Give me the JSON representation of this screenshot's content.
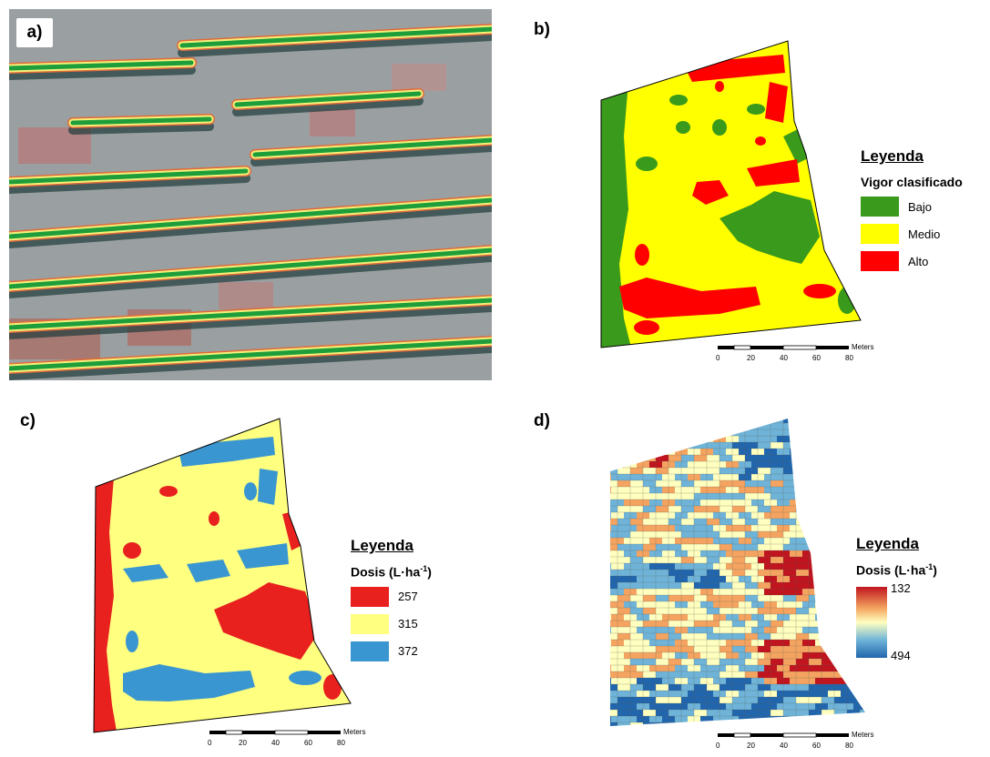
{
  "panels": {
    "a": "a)",
    "b": "b)",
    "c": "c)",
    "d": "d)"
  },
  "legend_b": {
    "title": "Leyenda",
    "subtitle": "Vigor clasificado",
    "items": [
      {
        "label": "Bajo",
        "color": "#3a9a1c"
      },
      {
        "label": "Medio",
        "color": "#ffff00"
      },
      {
        "label": "Alto",
        "color": "#ff0000"
      }
    ]
  },
  "legend_c": {
    "title": "Leyenda",
    "subtitle": "Dosis (L·ha",
    "superscript": "-1",
    "subtitle_end": ")",
    "items": [
      {
        "label": "257",
        "color": "#e8201e"
      },
      {
        "label": "315",
        "color": "#ffff80"
      },
      {
        "label": "372",
        "color": "#3a96d0"
      }
    ]
  },
  "legend_d": {
    "title": "Leyenda",
    "subtitle": "Dosis (L·ha",
    "superscript": "-1",
    "subtitle_end": ")",
    "ramp_top": "132",
    "ramp_bottom": "494",
    "ramp_colors": [
      "#c0141e",
      "#f4a460",
      "#ffffbf",
      "#6fb4d8",
      "#2166ac"
    ]
  },
  "scalebar": {
    "unit": "Meters",
    "ticks": [
      "0",
      "20",
      "40",
      "60",
      "80"
    ]
  }
}
